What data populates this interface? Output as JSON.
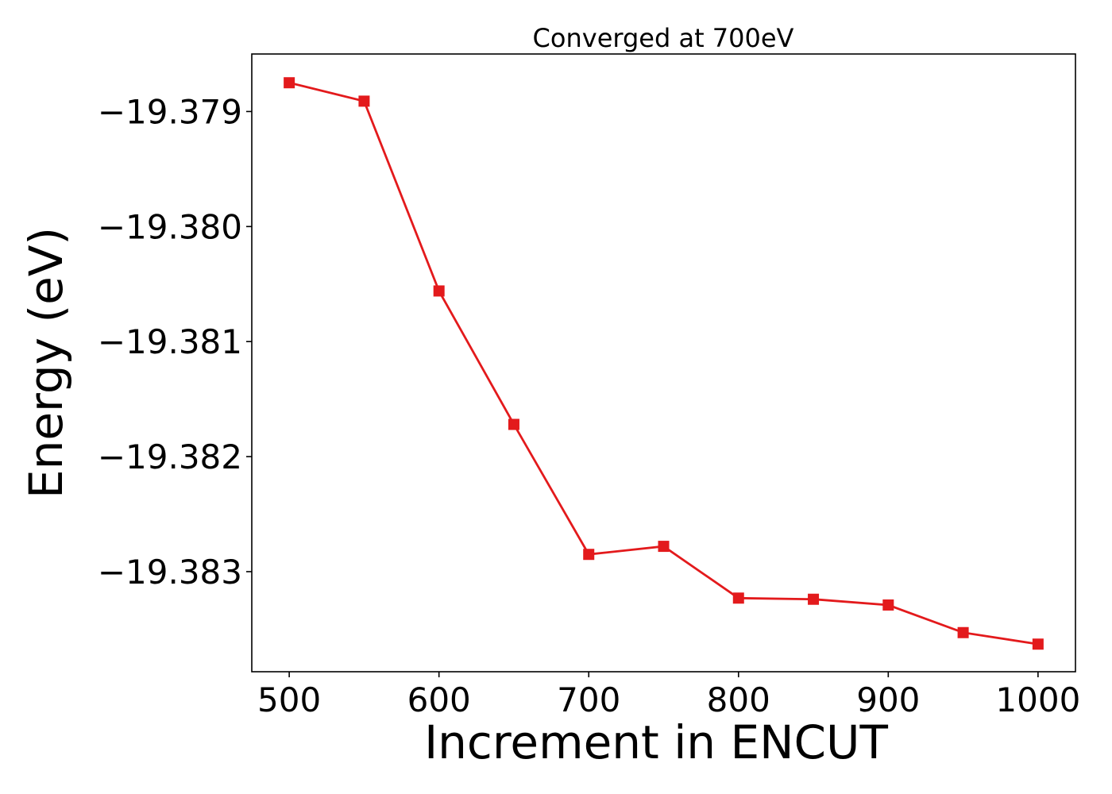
{
  "chart_data": {
    "type": "line",
    "title": "Converged at 700eV",
    "xlabel": "Increment in ENCUT",
    "ylabel": "Energy (eV)",
    "x": [
      500,
      550,
      600,
      650,
      700,
      750,
      800,
      850,
      900,
      950,
      1000
    ],
    "series": [
      {
        "name": "",
        "color": "#e31a1c",
        "marker": "square",
        "values": [
          -19.37875,
          -19.37891,
          -19.38056,
          -19.38172,
          -19.38285,
          -19.38278,
          -19.38323,
          -19.38324,
          -19.38329,
          -19.38353,
          -19.38363
        ]
      }
    ],
    "xlim": [
      475,
      1025
    ],
    "ylim": [
      -19.38387,
      -19.3785
    ],
    "xticks": [
      500,
      600,
      700,
      800,
      900,
      1000
    ],
    "xtick_labels": [
      "500",
      "600",
      "700",
      "800",
      "900",
      "1000"
    ],
    "yticks": [
      -19.379,
      -19.38,
      -19.381,
      -19.382,
      -19.383
    ],
    "ytick_labels": [
      "−19.379",
      "−19.380",
      "−19.381",
      "−19.382",
      "−19.383"
    ],
    "grid": false,
    "legend": "none"
  }
}
